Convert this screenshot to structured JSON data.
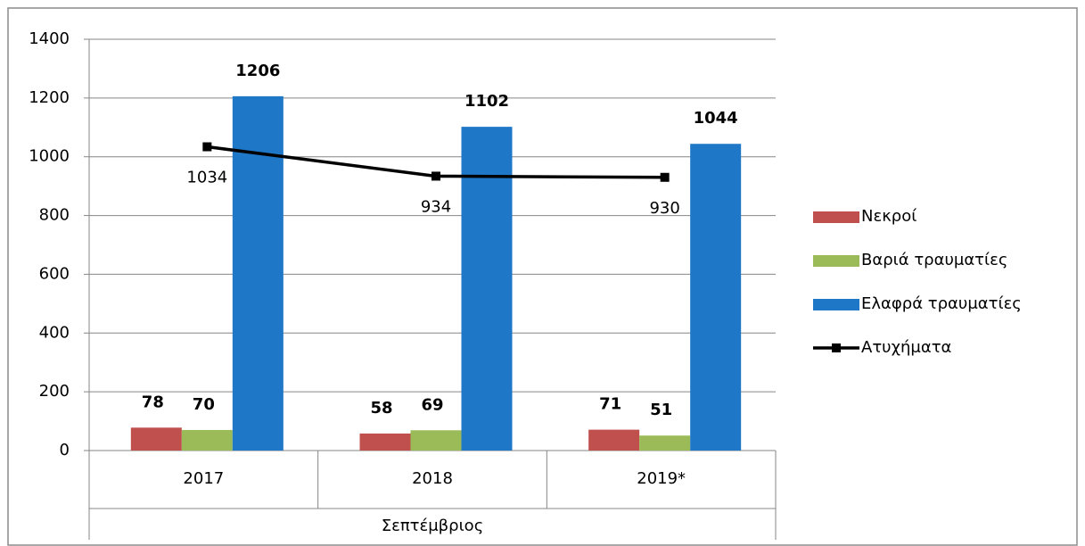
{
  "chart_data": {
    "type": "bar",
    "categories": [
      "2017",
      "2018",
      "2019*"
    ],
    "group_label": "Σεπτέμβριος",
    "series": [
      {
        "name": "Νεκροί",
        "color": "#c0504d",
        "values": [
          78,
          58,
          71
        ]
      },
      {
        "name": "Βαριά τραυματίες",
        "color": "#9bbb59",
        "values": [
          70,
          69,
          51
        ]
      },
      {
        "name": "Ελαφρά τραυματίες",
        "color": "#1f77c8",
        "values": [
          1206,
          1102,
          1044
        ]
      },
      {
        "name": "Ατυχήματα",
        "color": "#000000",
        "type": "line",
        "values": [
          1034,
          934,
          930
        ]
      }
    ],
    "ylim": [
      0,
      1400
    ],
    "yticks": [
      0,
      200,
      400,
      600,
      800,
      1000,
      1200,
      1400
    ],
    "grid": true,
    "legend": "right"
  }
}
